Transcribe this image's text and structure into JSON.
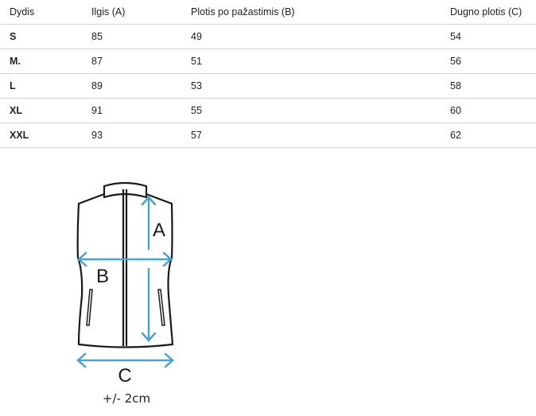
{
  "table": {
    "headers": [
      "Dydis",
      "Ilgis (A)",
      "Plotis po pažastimis (B)",
      "Dugno plotis (C)"
    ],
    "rows": [
      [
        "S",
        "85",
        "49",
        "54"
      ],
      [
        "M.",
        "87",
        "51",
        "56"
      ],
      [
        "L",
        "89",
        "53",
        "58"
      ],
      [
        "XL",
        "91",
        "55",
        "60"
      ],
      [
        "XXL",
        "93",
        "57",
        "62"
      ]
    ]
  },
  "diagram": {
    "label_a": "A",
    "label_b": "B",
    "label_c": "C",
    "tolerance": "+/- 2cm",
    "arrow_color": "#4aa3cf",
    "outline_color": "#1a1a1a"
  }
}
